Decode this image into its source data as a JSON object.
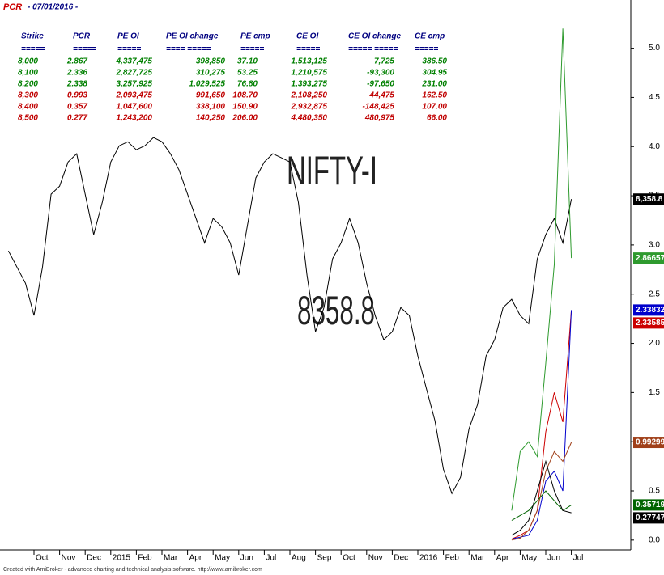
{
  "chart_data": {
    "type": "line",
    "title": "PCR",
    "subtitle": "- 07/01/2016 -",
    "credit": "Created with AmiBroker - advanced charting and technical analysis software. http://www.amibroker.com",
    "table": {
      "headers": [
        "Strike",
        "PCR",
        "PE OI",
        "PE OI change",
        "PE cmp",
        "CE OI",
        "CE OI change",
        "CE cmp"
      ],
      "separators": [
        "=====",
        "=====",
        "=====",
        "==== =====",
        "=====",
        "=====",
        "===== =====",
        "====="
      ],
      "rows": [
        {
          "color": "#008000",
          "cells": [
            "8,000",
            "2.867",
            "4,337,475",
            "398,850",
            "37.10",
            "1,513,125",
            "7,725",
            "386.50"
          ]
        },
        {
          "color": "#008000",
          "cells": [
            "8,100",
            "2.336",
            "2,827,725",
            "310,275",
            "53.25",
            "1,210,575",
            "-93,300",
            "304.95"
          ]
        },
        {
          "color": "#008000",
          "cells": [
            "8,200",
            "2.338",
            "3,257,925",
            "1,029,525",
            "76.80",
            "1,393,275",
            "-97,650",
            "231.00"
          ]
        },
        {
          "color": "#c00000",
          "cells": [
            "8,300",
            "0.993",
            "2,093,475",
            "991,650",
            "108.70",
            "2,108,250",
            "44,475",
            "162.50"
          ]
        },
        {
          "color": "#c00000",
          "cells": [
            "8,400",
            "0.357",
            "1,047,600",
            "338,100",
            "150.90",
            "2,932,875",
            "-148,425",
            "107.00"
          ]
        },
        {
          "color": "#c00000",
          "cells": [
            "8,500",
            "0.277",
            "1,243,200",
            "140,250",
            "206.00",
            "4,480,350",
            "480,975",
            "66.00"
          ]
        }
      ]
    },
    "categories": [
      null,
      null,
      null,
      "Oct",
      null,
      null,
      "Nov",
      null,
      null,
      "Dec",
      null,
      null,
      "2015",
      null,
      null,
      "Feb",
      null,
      null,
      "Mar",
      null,
      null,
      "Apr",
      null,
      null,
      "May",
      null,
      null,
      "Jun",
      null,
      null,
      "Jul",
      null,
      null,
      "Aug",
      null,
      null,
      "Sep",
      null,
      null,
      "Oct",
      null,
      null,
      "Nov",
      null,
      null,
      "Dec",
      null,
      null,
      "2016",
      null,
      null,
      "Feb",
      null,
      null,
      "Mar",
      null,
      null,
      "Apr",
      null,
      null,
      "May",
      null,
      null,
      "Jun",
      null,
      null,
      "Jul"
    ],
    "ylim": [
      -0.1,
      5.49
    ],
    "yticks": [
      {
        "value": 0,
        "label": "0.0"
      },
      0.5,
      {
        "value": 1,
        "label": "1.0"
      },
      1.5,
      {
        "value": 2,
        "label": "2.0"
      },
      2.5,
      {
        "value": 3,
        "label": "3.0"
      },
      3.5,
      {
        "value": 4,
        "label": "4.0"
      },
      4.5,
      {
        "value": 5,
        "label": "5.0"
      }
    ],
    "y2lim": [
      6780,
      9255
    ],
    "price_marker": {
      "value": 8358.8,
      "label": "8,358.8"
    },
    "series": [
      {
        "name": "NIFTY-I",
        "axis": "y2",
        "color": "#000000",
        "values": [
          8126,
          8053,
          7980,
          7835,
          8053,
          8381,
          8417,
          8526,
          8563,
          8381,
          8199,
          8344,
          8526,
          8599,
          8617,
          8581,
          8599,
          8636,
          8617,
          8563,
          8490,
          8381,
          8272,
          8162,
          8272,
          8235,
          8162,
          8017,
          8235,
          8454,
          8526,
          8563,
          8545,
          8526,
          8344,
          8017,
          7762,
          7871,
          8090,
          8162,
          8272,
          8162,
          7980,
          7835,
          7726,
          7762,
          7871,
          7835,
          7653,
          7507,
          7362,
          7143,
          7034,
          7107,
          7325,
          7434,
          7653,
          7726,
          7871,
          7908,
          7835,
          7798,
          8090,
          8199,
          8272,
          8162,
          8358.8
        ]
      },
      {
        "color": "#2e9a2e",
        "values": [
          null,
          null,
          null,
          null,
          null,
          null,
          null,
          null,
          null,
          null,
          null,
          null,
          null,
          null,
          null,
          null,
          null,
          null,
          null,
          null,
          null,
          null,
          null,
          null,
          null,
          null,
          null,
          null,
          null,
          null,
          null,
          null,
          null,
          null,
          null,
          null,
          null,
          null,
          null,
          null,
          null,
          null,
          null,
          null,
          null,
          null,
          null,
          null,
          null,
          null,
          null,
          null,
          null,
          null,
          null,
          null,
          null,
          null,
          null,
          0.3,
          0.9,
          1.0,
          0.85,
          1.8,
          2.8,
          5.2,
          2.86657
        ]
      },
      {
        "color": "#cc0000",
        "values": [
          null,
          null,
          null,
          null,
          null,
          null,
          null,
          null,
          null,
          null,
          null,
          null,
          null,
          null,
          null,
          null,
          null,
          null,
          null,
          null,
          null,
          null,
          null,
          null,
          null,
          null,
          null,
          null,
          null,
          null,
          null,
          null,
          null,
          null,
          null,
          null,
          null,
          null,
          null,
          null,
          null,
          null,
          null,
          null,
          null,
          null,
          null,
          null,
          null,
          null,
          null,
          null,
          null,
          null,
          null,
          null,
          null,
          null,
          null,
          0.01,
          0.05,
          0.1,
          0.3,
          1.1,
          1.5,
          1.2,
          2.33585
        ]
      },
      {
        "color": "#0000cc",
        "values": [
          null,
          null,
          null,
          null,
          null,
          null,
          null,
          null,
          null,
          null,
          null,
          null,
          null,
          null,
          null,
          null,
          null,
          null,
          null,
          null,
          null,
          null,
          null,
          null,
          null,
          null,
          null,
          null,
          null,
          null,
          null,
          null,
          null,
          null,
          null,
          null,
          null,
          null,
          null,
          null,
          null,
          null,
          null,
          null,
          null,
          null,
          null,
          null,
          null,
          null,
          null,
          null,
          null,
          null,
          null,
          null,
          null,
          null,
          null,
          0.01,
          0.03,
          0.05,
          0.2,
          0.6,
          0.7,
          0.5,
          2.33832
        ]
      },
      {
        "color": "#a0401a",
        "values": [
          null,
          null,
          null,
          null,
          null,
          null,
          null,
          null,
          null,
          null,
          null,
          null,
          null,
          null,
          null,
          null,
          null,
          null,
          null,
          null,
          null,
          null,
          null,
          null,
          null,
          null,
          null,
          null,
          null,
          null,
          null,
          null,
          null,
          null,
          null,
          null,
          null,
          null,
          null,
          null,
          null,
          null,
          null,
          null,
          null,
          null,
          null,
          null,
          null,
          null,
          null,
          null,
          null,
          null,
          null,
          null,
          null,
          null,
          null,
          0.0,
          0.02,
          0.1,
          0.3,
          0.7,
          0.9,
          0.8,
          0.99299
        ]
      },
      {
        "color": "#006400",
        "values": [
          null,
          null,
          null,
          null,
          null,
          null,
          null,
          null,
          null,
          null,
          null,
          null,
          null,
          null,
          null,
          null,
          null,
          null,
          null,
          null,
          null,
          null,
          null,
          null,
          null,
          null,
          null,
          null,
          null,
          null,
          null,
          null,
          null,
          null,
          null,
          null,
          null,
          null,
          null,
          null,
          null,
          null,
          null,
          null,
          null,
          null,
          null,
          null,
          null,
          null,
          null,
          null,
          null,
          null,
          null,
          null,
          null,
          null,
          null,
          0.2,
          0.25,
          0.3,
          0.4,
          0.5,
          0.4,
          0.3,
          0.35719
        ]
      },
      {
        "color": "#000000",
        "values": [
          null,
          null,
          null,
          null,
          null,
          null,
          null,
          null,
          null,
          null,
          null,
          null,
          null,
          null,
          null,
          null,
          null,
          null,
          null,
          null,
          null,
          null,
          null,
          null,
          null,
          null,
          null,
          null,
          null,
          null,
          null,
          null,
          null,
          null,
          null,
          null,
          null,
          null,
          null,
          null,
          null,
          null,
          null,
          null,
          null,
          null,
          null,
          null,
          null,
          null,
          null,
          null,
          null,
          null,
          null,
          null,
          null,
          null,
          null,
          0.05,
          0.1,
          0.2,
          0.5,
          0.8,
          0.5,
          0.3,
          0.27747
        ]
      }
    ]
  }
}
